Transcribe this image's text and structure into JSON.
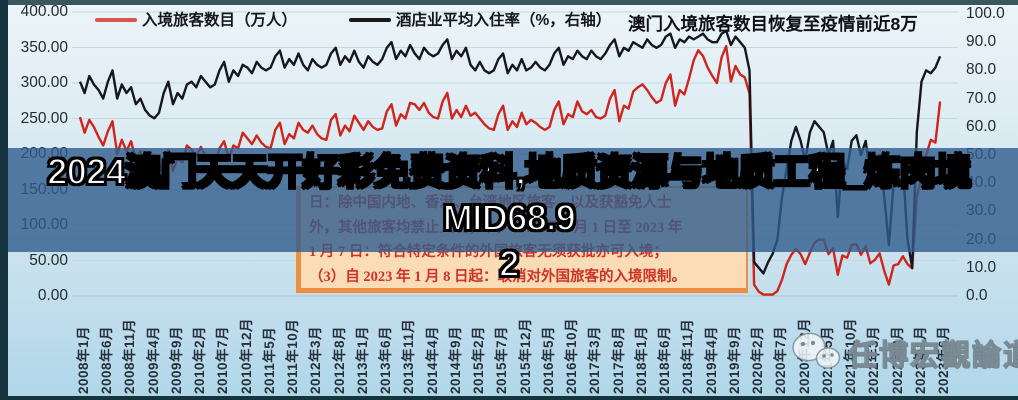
{
  "title": "澳门入境旅客数目恢复至疫情前近8万",
  "legend": {
    "items": [
      {
        "label": "入境旅客数目（万人）",
        "color": "#d95550"
      },
      {
        "label": "酒店业平均入住率（%，右轴）",
        "color": "#1a1a1a"
      }
    ]
  },
  "left_axis": {
    "ticks": [
      "400.00",
      "350.00",
      "300.00",
      "250.00",
      "200.00",
      "150.00",
      "100.00",
      "50.00",
      "0.00"
    ]
  },
  "right_axis": {
    "ticks": [
      "100.0",
      "90.0",
      "80.0",
      "70.0",
      "60.0",
      "50.0",
      "40.0",
      "30.0",
      "20.0",
      "10.0",
      "0.0"
    ]
  },
  "policy_box": {
    "lines": [
      "日：除中国内地、香港、台湾地区旅客，以及获豁免人士",
      "外，其他旅客均禁止入境；（2）2022 年 9 月 1 日至 2023 年",
      "1 月 7 日：符合特定条件的外国旅客无须获批亦可入境；",
      "（3）自 2023 年 1 月 8 日起：取消对外国旅客的入境限制。"
    ]
  },
  "overlay": {
    "lines": [
      "2024澳门天天开好彩免费资科,地质资源与地质工程_炼肉境MID68.9",
      "2"
    ]
  },
  "watermark": {
    "text": "任博宏觀論道",
    "icon": "wechat-icon"
  },
  "colors": {
    "visitors_line": "#d0251c",
    "occupancy_line": "#16161e",
    "band": "rgba(47,93,141,0.8)",
    "grid": "#c6d8e1",
    "frame": "#16343d"
  },
  "chart_data": {
    "type": "line",
    "title": "澳门入境旅客数目恢复至疫情前近8万",
    "x_start": "2008-01",
    "x_end": "2023-06",
    "x_interval": "monthly",
    "n_points": 186,
    "x_tick_labels": [
      "2008年1月",
      "2008年6月",
      "2008年11月",
      "2009年4月",
      "2009年9月",
      "2010年2月",
      "2010年7月",
      "2010年12月",
      "2011年5月",
      "2011年10月",
      "2012年3月",
      "2012年8月",
      "2013年1月",
      "2013年6月",
      "2013年11月",
      "2014年4月",
      "2014年9月",
      "2015年2月",
      "2015年7月",
      "2015年12月",
      "2016年5月",
      "2016年10月",
      "2017年3月",
      "2017年8月",
      "2018年1月",
      "2018年6月",
      "2018年11月",
      "2019年4月",
      "2019年9月",
      "2020年2月",
      "2020年7月",
      "2020年12月",
      "2021年5月",
      "2021年10月",
      "2022年3月",
      "2022年8月",
      "2023年1月",
      "2023年6月"
    ],
    "left_ylim": [
      0,
      400
    ],
    "right_ylim": [
      0,
      100
    ],
    "grid": true,
    "legend_position": "top-left",
    "series": [
      {
        "name": "入境旅客数目（万人）",
        "axis": "left",
        "color": "#d0251c",
        "values": [
          252,
          230,
          248,
          238,
          224,
          212,
          232,
          246,
          200,
          220,
          204,
          218,
          192,
          204,
          184,
          174,
          166,
          172,
          194,
          206,
          176,
          194,
          188,
          212,
          206,
          196,
          210,
          198,
          190,
          186,
          208,
          218,
          194,
          212,
          208,
          230,
          222,
          214,
          226,
          216,
          210,
          208,
          234,
          244,
          214,
          228,
          222,
          244,
          234,
          230,
          240,
          228,
          222,
          220,
          248,
          256,
          226,
          240,
          232,
          254,
          244,
          234,
          246,
          238,
          234,
          236,
          260,
          270,
          240,
          256,
          250,
          272,
          270,
          262,
          272,
          258,
          252,
          250,
          274,
          286,
          250,
          262,
          252,
          268,
          254,
          258,
          250,
          242,
          236,
          234,
          256,
          268,
          234,
          246,
          238,
          258,
          242,
          248,
          244,
          238,
          234,
          238,
          262,
          274,
          242,
          256,
          252,
          274,
          260,
          256,
          262,
          252,
          250,
          254,
          278,
          290,
          246,
          268,
          264,
          288,
          294,
          298,
          290,
          280,
          272,
          276,
          300,
          312,
          268,
          290,
          284,
          306,
          332,
          346,
          338,
          322,
          310,
          300,
          336,
          352,
          302,
          324,
          312,
          308,
          285,
          16,
          6,
          2,
          2,
          2,
          7,
          23,
          45,
          58,
          66,
          59,
          45,
          61,
          75,
          80,
          79,
          59,
          67,
          30,
          57,
          54,
          72,
          73,
          58,
          70,
          46,
          51,
          60,
          35,
          16,
          43,
          45,
          56,
          45,
          39,
          140,
          168,
          198,
          220,
          216,
          274
        ]
      },
      {
        "name": "酒店业平均入住率（%，右轴）",
        "axis": "right",
        "color": "#16161e",
        "values": [
          76,
          72,
          78,
          75,
          73,
          70,
          76,
          80,
          70,
          75,
          72,
          74,
          68,
          70,
          66,
          64,
          63,
          65,
          72,
          76,
          68,
          72,
          70,
          75,
          76,
          74,
          78,
          76,
          74,
          75,
          80,
          83,
          76,
          80,
          78,
          82,
          81,
          79,
          83,
          81,
          80,
          81,
          85,
          87,
          81,
          84,
          82,
          86,
          82,
          80,
          84,
          82,
          81,
          82,
          86,
          88,
          82,
          85,
          83,
          87,
          83,
          81,
          85,
          83,
          82,
          84,
          88,
          90,
          84,
          87,
          85,
          89,
          86,
          84,
          88,
          86,
          85,
          86,
          89,
          91,
          84,
          87,
          85,
          88,
          82,
          80,
          83,
          80,
          79,
          80,
          84,
          86,
          79,
          82,
          80,
          84,
          80,
          81,
          83,
          81,
          80,
          82,
          86,
          88,
          82,
          85,
          84,
          87,
          85,
          84,
          87,
          85,
          84,
          86,
          89,
          91,
          85,
          88,
          87,
          90,
          89,
          88,
          91,
          89,
          88,
          89,
          92,
          93,
          88,
          91,
          90,
          92,
          91,
          92,
          93,
          91,
          90,
          90,
          93,
          94,
          89,
          92,
          90,
          88,
          80,
          12,
          10,
          8,
          12,
          15,
          20,
          35,
          45,
          55,
          60,
          55,
          48,
          58,
          62,
          60,
          58,
          50,
          55,
          28,
          48,
          45,
          55,
          57,
          50,
          55,
          42,
          45,
          50,
          35,
          18,
          40,
          42,
          46,
          20,
          10,
          58,
          76,
          80,
          79,
          81,
          85
        ]
      }
    ]
  }
}
